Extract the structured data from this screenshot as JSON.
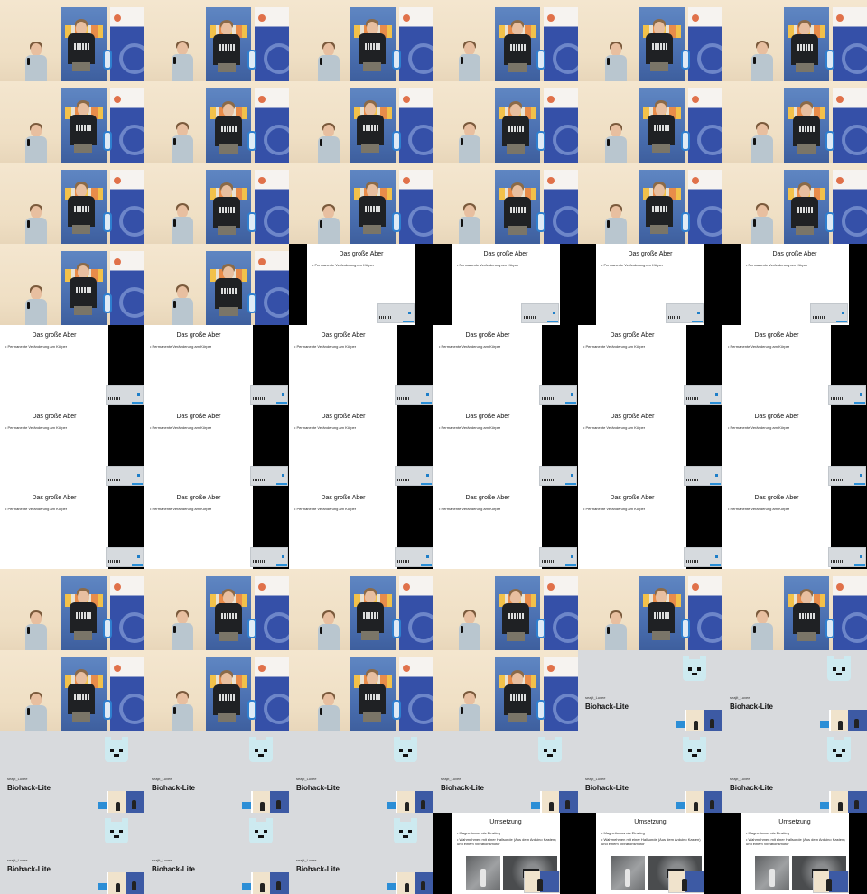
{
  "tiles": [
    "stage",
    "stage",
    "stage",
    "stage",
    "stage",
    "stage",
    "stage",
    "stage",
    "stage",
    "stage",
    "stage",
    "stage",
    "stage",
    "stage",
    "stage",
    "stage",
    "stage",
    "stage",
    "stage",
    "stage",
    "slide",
    "slide",
    "slide",
    "slide",
    "slide",
    "slide",
    "slide",
    "slide",
    "slide",
    "slide",
    "slide",
    "slide",
    "slide",
    "slide",
    "slide",
    "slide",
    "slide",
    "slide",
    "slide",
    "slide",
    "slide",
    "slide",
    "stage",
    "stage",
    "stage",
    "stage",
    "stage",
    "stage",
    "stage",
    "stage",
    "stage",
    "stage",
    "card",
    "card",
    "card",
    "card",
    "card",
    "card",
    "card",
    "card",
    "card",
    "card",
    "card",
    "impl",
    "impl",
    "impl"
  ],
  "slide_align": [
    "left",
    "left",
    "left",
    "left",
    "right",
    "right",
    "right",
    "right",
    "right",
    "right",
    "right",
    "right",
    "right",
    "right",
    "right",
    "right",
    "right",
    "right",
    "right",
    "right",
    "right",
    "right"
  ],
  "stage_colors": {
    "wall": "#f4e6cf",
    "banner_blue": "#3550a8",
    "shirt": "#1f2124"
  },
  "slide": {
    "title": "Das große Aber",
    "bullet": "• Permanente Veränderung am Körper"
  },
  "card": {
    "kicker": "seajit_Luxee",
    "title": "Biohack-Lite",
    "mascot": "bear-icon"
  },
  "impl": {
    "title": "Umsetzung",
    "bullet_1": "• Magnetismus als Einstieg",
    "bullet_2": "• Wahrnehmen mit einer Hallsonde (Aus dem Arduino Kasten) und einem Vibrationsmotor"
  }
}
